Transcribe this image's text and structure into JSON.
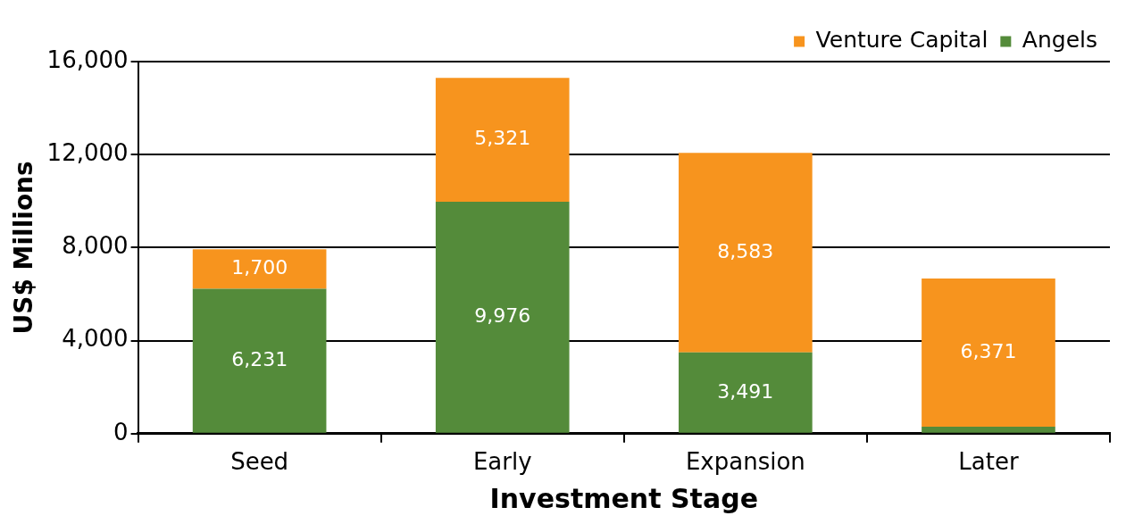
{
  "chart_data": {
    "type": "bar",
    "stacked": true,
    "xlabel": "Investment Stage",
    "ylabel": "US$ Millions",
    "categories": [
      "Seed",
      "Early",
      "Expansion",
      "Later"
    ],
    "series": [
      {
        "name": "Angels",
        "color": "#548b3a",
        "values": [
          6231,
          9976,
          3491,
          300
        ],
        "value_labels": [
          "6,231",
          "9,976",
          "3,491",
          null
        ]
      },
      {
        "name": "Venture Capital",
        "color": "#f7941e",
        "values": [
          1700,
          5321,
          8583,
          6371
        ],
        "value_labels": [
          "1,700",
          "5,321",
          "8,583",
          "6,371"
        ]
      }
    ],
    "ylim": [
      0,
      16000
    ],
    "yticks": [
      {
        "value": 0,
        "label": "0"
      },
      {
        "value": 4000,
        "label": "4,000"
      },
      {
        "value": 8000,
        "label": "8,000"
      },
      {
        "value": 12000,
        "label": "12,000"
      },
      {
        "value": 16000,
        "label": "16,000"
      }
    ],
    "grid": "y",
    "legend": "top right"
  }
}
